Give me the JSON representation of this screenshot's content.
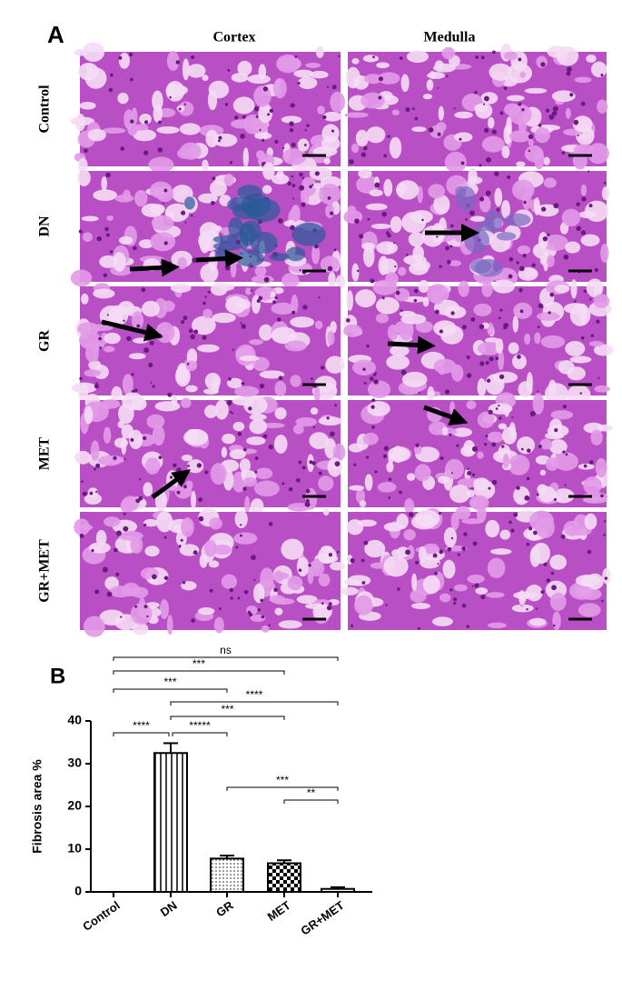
{
  "panel_a": {
    "label": "A",
    "columns": [
      "Cortex",
      "Medulla"
    ],
    "rows": [
      "Control",
      "DN",
      "GR",
      "MET",
      "GR+MET"
    ]
  },
  "chart_data": {
    "type": "bar",
    "panel_label": "B",
    "ylabel": "Fibrosis area %",
    "categories": [
      "Control",
      "DN",
      "GR",
      "MET",
      "GR+MET"
    ],
    "values": [
      0,
      32.5,
      7.8,
      6.7,
      0.7
    ],
    "errors": [
      0,
      2.3,
      0.7,
      0.7,
      0.4
    ],
    "patterns": [
      "solid",
      "vertical-lines",
      "dots",
      "checker",
      "solid"
    ],
    "color": "#000000",
    "ylim": [
      0,
      40
    ],
    "yticks": [
      0,
      10,
      20,
      30,
      40
    ],
    "significance": [
      {
        "pair": [
          "Control",
          "GR+MET"
        ],
        "label": "ns"
      },
      {
        "pair": [
          "Control",
          "MET"
        ],
        "label": "***"
      },
      {
        "pair": [
          "Control",
          "GR"
        ],
        "label": "***"
      },
      {
        "pair": [
          "DN",
          "GR+MET"
        ],
        "label": "****"
      },
      {
        "pair": [
          "DN",
          "MET"
        ],
        "label": "***"
      },
      {
        "pair": [
          "Control",
          "DN"
        ],
        "label": "****"
      },
      {
        "pair": [
          "DN",
          "GR"
        ],
        "label": "*****"
      },
      {
        "pair": [
          "GR",
          "GR+MET"
        ],
        "label": "***"
      },
      {
        "pair": [
          "MET",
          "GR+MET"
        ],
        "label": "**"
      }
    ]
  }
}
